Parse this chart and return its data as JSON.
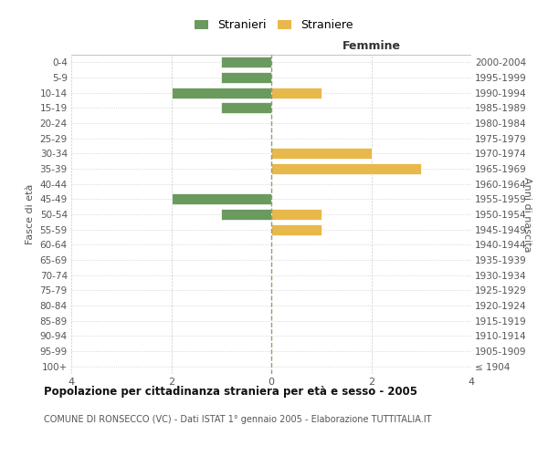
{
  "age_groups": [
    "100+",
    "95-99",
    "90-94",
    "85-89",
    "80-84",
    "75-79",
    "70-74",
    "65-69",
    "60-64",
    "55-59",
    "50-54",
    "45-49",
    "40-44",
    "35-39",
    "30-34",
    "25-29",
    "20-24",
    "15-19",
    "10-14",
    "5-9",
    "0-4"
  ],
  "birth_years": [
    "≤ 1904",
    "1905-1909",
    "1910-1914",
    "1915-1919",
    "1920-1924",
    "1925-1929",
    "1930-1934",
    "1935-1939",
    "1940-1944",
    "1945-1949",
    "1950-1954",
    "1955-1959",
    "1960-1964",
    "1965-1969",
    "1970-1974",
    "1975-1979",
    "1980-1984",
    "1985-1989",
    "1990-1994",
    "1995-1999",
    "2000-2004"
  ],
  "males": [
    0,
    0,
    0,
    0,
    0,
    0,
    0,
    0,
    0,
    0,
    -1,
    -2,
    0,
    0,
    0,
    0,
    0,
    -1,
    -2,
    -1,
    -1
  ],
  "females": [
    0,
    0,
    0,
    0,
    0,
    0,
    0,
    0,
    0,
    1,
    1,
    0,
    0,
    3,
    2,
    0,
    0,
    0,
    1,
    0,
    0
  ],
  "male_color": "#6b9a5e",
  "female_color": "#e8b84b",
  "title_main": "Popolazione per cittadinanza straniera per età e sesso - 2005",
  "title_sub": "COMUNE DI RONSECCO (VC) - Dati ISTAT 1° gennaio 2005 - Elaborazione TUTTITALIA.IT",
  "xlabel_right": "Femmine",
  "ylabel_left": "Fasce di età",
  "ylabel_right": "Anni di nascita",
  "legend_male": "Stranieri",
  "legend_female": "Straniere",
  "xlim": 4,
  "background_color": "#ffffff",
  "grid_color": "#cccccc",
  "grid_color_dotted": "#cccccc",
  "center_line_color": "#999977",
  "bar_edge_color": "#ffffff"
}
